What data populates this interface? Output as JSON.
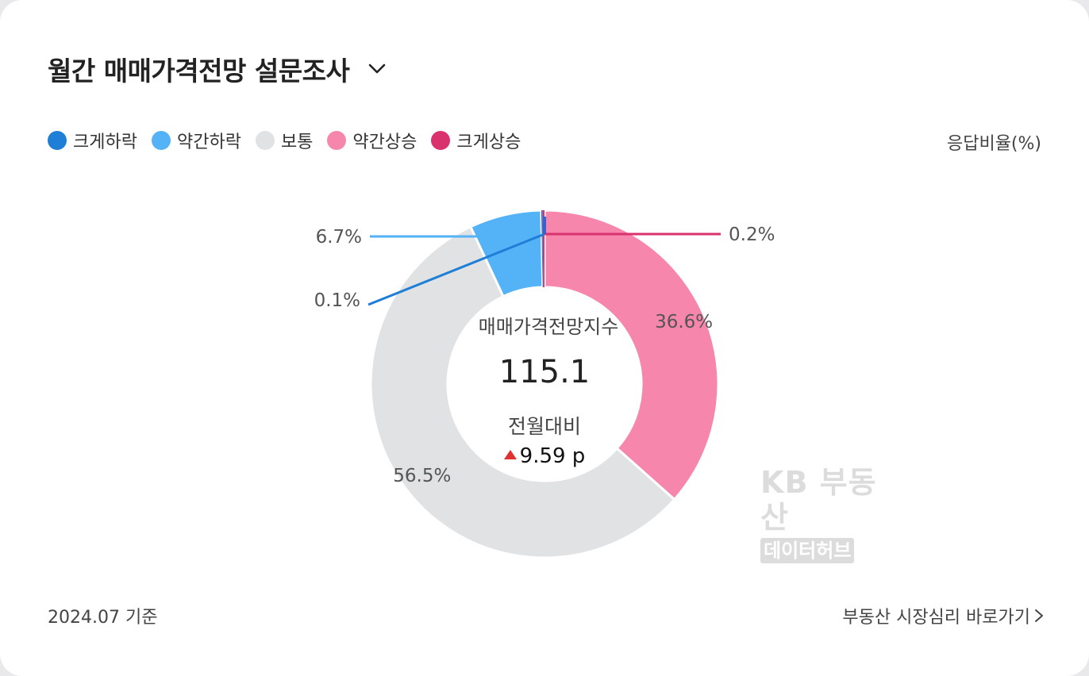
{
  "header": {
    "title": "월간 매매가격전망 설문조사",
    "dropdown_icon": "chevron-down-icon"
  },
  "legend": {
    "items": [
      {
        "label": "크게하락",
        "color": "#1f7fd6"
      },
      {
        "label": "약간하락",
        "color": "#54b2f7"
      },
      {
        "label": "보통",
        "color": "#e1e2e4"
      },
      {
        "label": "약간상승",
        "color": "#f786ad"
      },
      {
        "label": "크게상승",
        "color": "#d9326c"
      }
    ],
    "unit": "응답비율(%)"
  },
  "chart_data": {
    "type": "pie",
    "donut": true,
    "start_angle_deg": 0,
    "direction": "clockwise",
    "slices": [
      {
        "name": "약간상승",
        "value": 36.6,
        "label": "36.6%",
        "color": "#f786ad"
      },
      {
        "name": "보통",
        "value": 56.5,
        "label": "56.5%",
        "color": "#e1e2e4"
      },
      {
        "name": "약간하락",
        "value": 6.7,
        "label": "6.7%",
        "color": "#54b2f7"
      },
      {
        "name": "크게하락",
        "value": 0.1,
        "label": "0.1%",
        "color": "#1f7fd6"
      },
      {
        "name": "크게상승",
        "value": 0.2,
        "label": "0.2%",
        "color": "#d9326c"
      }
    ],
    "center": {
      "label": "매매가격전망지수",
      "value": "115.1",
      "sub_label": "전월대비",
      "change": "9.59 p",
      "change_direction": "up",
      "change_color": "#e03131"
    }
  },
  "watermark": {
    "line1": "KB 부동산",
    "line2": "데이터허브"
  },
  "footer": {
    "date": "2024.07 기준",
    "link": "부동산 시장심리 바로가기",
    "link_icon": "chevron-right-icon"
  }
}
